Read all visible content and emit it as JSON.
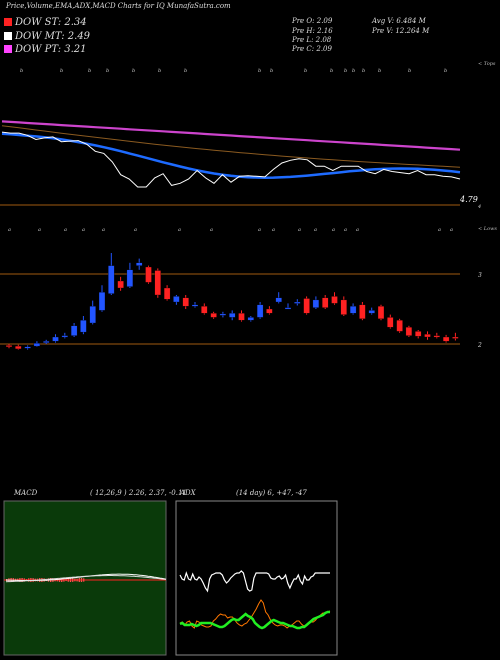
{
  "header": {
    "title": "Price,Volume,EMA,ADX,MACD Charts for IQ MunafaSutra.com",
    "prev_o": "Pre  O: 2.09",
    "prev_h": "Pre  H: 2.16",
    "prev_l": "Pre  L: 2.08",
    "prev_c": "Pre  C: 2.09",
    "avg_v": "Avg V: 6.484  M",
    "pre_v": "Pre  V: 12.264  M"
  },
  "dow": [
    {
      "label": "DOW ST: 2.34",
      "color": "#ff2222"
    },
    {
      "label": "DOW MT: 2.49",
      "color": "#ffffff"
    },
    {
      "label": "DOW PT: 3.21",
      "color": "#ff44ff"
    }
  ],
  "colors": {
    "up": "#2255ff",
    "down": "#ff2222",
    "hline": "#a05a10",
    "ema_blue": "#1e6bff",
    "ema_magenta": "#cc44cc",
    "price_white": "#ffffff",
    "macd_panel": "#0a3a0a",
    "adx_green": "#22ee22",
    "adx_orange": "#ff7700"
  },
  "chart_data": [
    {
      "type": "line",
      "name": "price-ema-panel",
      "annotation_right": "4.79",
      "axis_note": "< Tops",
      "bottom_tick": "4",
      "price": [
        4.58,
        4.56,
        4.56,
        4.52,
        4.44,
        4.47,
        4.49,
        4.4,
        4.41,
        4.42,
        4.35,
        4.22,
        4.18,
        4.02,
        3.78,
        3.7,
        3.55,
        3.55,
        3.72,
        3.8,
        3.58,
        3.62,
        3.7,
        3.86,
        3.72,
        3.62,
        3.78,
        3.64,
        3.75,
        3.76,
        3.75,
        3.74,
        3.88,
        4.0,
        4.05,
        4.08,
        4.06,
        3.94,
        3.94,
        3.86,
        3.94,
        3.94,
        3.94,
        3.84,
        3.8,
        3.88,
        3.84,
        3.82,
        3.8,
        3.86,
        3.78,
        3.78,
        3.75,
        3.74,
        3.7
      ],
      "ema_series": [
        {
          "values_start": 4.78,
          "values_end": 4.25
        },
        {
          "values_start": 4.7,
          "values_end": 3.92
        },
        {
          "values_start": 4.55,
          "values_end": 3.7
        }
      ]
    },
    {
      "type": "bar",
      "name": "candles",
      "axis_note": "< Lows",
      "ticks": [
        "3",
        "2"
      ],
      "open": [
        1.98,
        1.97,
        1.94,
        1.97,
        2.02,
        2.04,
        2.1,
        2.12,
        2.17,
        2.3,
        2.48,
        2.72,
        2.9,
        2.82,
        3.12,
        3.1,
        3.05,
        2.8,
        2.6,
        2.66,
        2.55,
        2.54,
        2.44,
        2.42,
        2.38,
        2.44,
        2.34,
        2.38,
        2.5,
        2.6,
        2.52,
        2.58,
        2.65,
        2.52,
        2.66,
        2.68,
        2.63,
        2.44,
        2.56,
        2.44,
        2.54,
        2.38,
        2.34,
        2.24,
        2.18,
        2.14,
        2.12,
        2.1,
        2.1
      ],
      "close": [
        1.96,
        1.93,
        1.96,
        2.01,
        2.04,
        2.1,
        2.12,
        2.26,
        2.34,
        2.54,
        2.74,
        3.12,
        2.8,
        3.06,
        3.16,
        2.88,
        2.7,
        2.64,
        2.68,
        2.54,
        2.56,
        2.44,
        2.38,
        2.43,
        2.44,
        2.34,
        2.38,
        2.56,
        2.44,
        2.66,
        2.52,
        2.6,
        2.44,
        2.63,
        2.52,
        2.58,
        2.42,
        2.54,
        2.36,
        2.48,
        2.36,
        2.24,
        2.18,
        2.12,
        2.11,
        2.1,
        2.11,
        2.04,
        2.09
      ],
      "high": [
        2.0,
        1.99,
        1.98,
        2.04,
        2.06,
        2.14,
        2.16,
        2.3,
        2.4,
        2.62,
        2.84,
        3.3,
        2.96,
        3.16,
        3.22,
        3.12,
        3.08,
        2.84,
        2.7,
        2.7,
        2.6,
        2.58,
        2.46,
        2.46,
        2.48,
        2.48,
        2.4,
        2.6,
        2.54,
        2.74,
        2.58,
        2.64,
        2.68,
        2.68,
        2.7,
        2.74,
        2.68,
        2.58,
        2.6,
        2.52,
        2.56,
        2.42,
        2.36,
        2.26,
        2.2,
        2.18,
        2.16,
        2.13,
        2.16
      ],
      "low": [
        1.94,
        1.92,
        1.92,
        1.96,
        2.0,
        2.02,
        2.08,
        2.1,
        2.14,
        2.28,
        2.46,
        2.7,
        2.76,
        2.8,
        3.06,
        2.86,
        2.66,
        2.62,
        2.56,
        2.5,
        2.52,
        2.42,
        2.36,
        2.38,
        2.34,
        2.32,
        2.32,
        2.36,
        2.42,
        2.58,
        2.5,
        2.55,
        2.42,
        2.5,
        2.5,
        2.56,
        2.4,
        2.42,
        2.34,
        2.42,
        2.34,
        2.22,
        2.16,
        2.1,
        2.08,
        2.06,
        2.08,
        2.02,
        2.05
      ]
    },
    {
      "type": "line",
      "name": "macd-panel",
      "title": "MACD",
      "params": "( 12,26,9 ) 2.26,  2.37,  -0.11"
    },
    {
      "type": "line",
      "name": "adx-panel",
      "title": "ADX",
      "params": "(14  day) 6,  +47,  -47"
    }
  ]
}
